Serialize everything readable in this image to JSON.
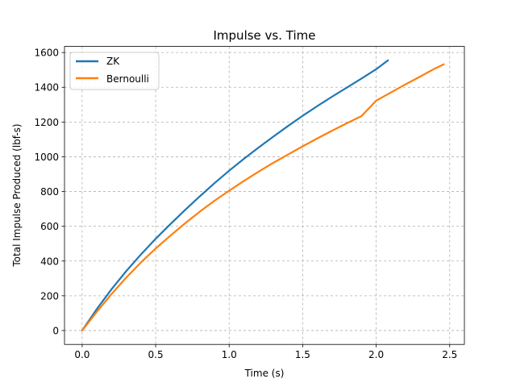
{
  "chart_data": {
    "type": "line",
    "title": "Impulse vs. Time",
    "xlabel": "Time (s)",
    "ylabel": "Total Impulse Produced (lbf-s)",
    "xlim": [
      -0.12,
      2.6
    ],
    "ylim": [
      -80,
      1635
    ],
    "xticks": [
      0.0,
      0.5,
      1.0,
      1.5,
      2.0,
      2.5
    ],
    "xtick_labels": [
      "0.0",
      "0.5",
      "1.0",
      "1.5",
      "2.0",
      "2.5"
    ],
    "yticks": [
      0,
      200,
      400,
      600,
      800,
      1000,
      1200,
      1400,
      1600
    ],
    "ytick_labels": [
      "0",
      "200",
      "400",
      "600",
      "800",
      "1000",
      "1200",
      "1400",
      "1600"
    ],
    "grid": true,
    "legend": "top-left",
    "series": [
      {
        "name": "ZK",
        "color": "#1f77b4",
        "x": [
          0.0,
          0.1,
          0.2,
          0.3,
          0.4,
          0.5,
          0.6,
          0.7,
          0.8,
          0.9,
          1.0,
          1.1,
          1.2,
          1.3,
          1.4,
          1.5,
          1.6,
          1.7,
          1.8,
          1.9,
          2.0,
          2.08
        ],
        "y": [
          0,
          124,
          238,
          342,
          438,
          528,
          612,
          694,
          772,
          848,
          920,
          988,
          1053,
          1116,
          1177,
          1236,
          1292,
          1346,
          1398,
          1450,
          1504,
          1555
        ]
      },
      {
        "name": "Bernoulli",
        "color": "#ff7f0e",
        "x": [
          0.0,
          0.1,
          0.2,
          0.3,
          0.4,
          0.5,
          0.6,
          0.7,
          0.8,
          0.9,
          1.0,
          1.1,
          1.2,
          1.3,
          1.4,
          1.5,
          1.6,
          1.7,
          1.8,
          1.9,
          2.0,
          2.1,
          2.2,
          2.3,
          2.4,
          2.46
        ],
        "y": [
          0,
          108,
          210,
          305,
          392,
          472,
          546,
          617,
          684,
          747,
          805,
          861,
          914,
          965,
          1013,
          1060,
          1106,
          1150,
          1193,
          1234,
          1323,
          1370,
          1417,
          1462,
          1508,
          1532
        ]
      }
    ]
  }
}
